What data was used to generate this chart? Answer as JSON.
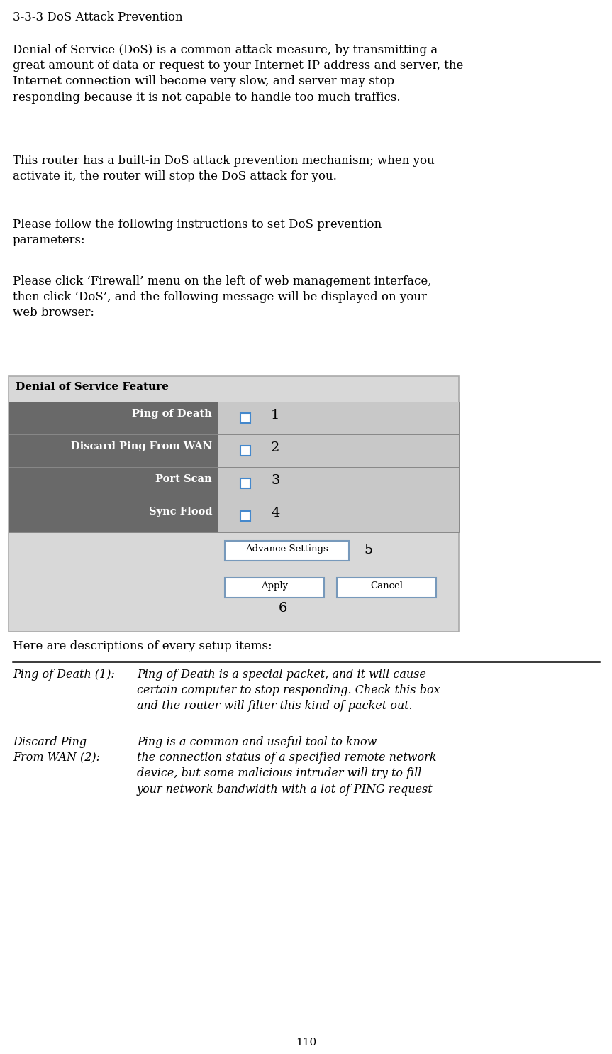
{
  "title": "3-3-3 DoS Attack Prevention",
  "para1": "Denial of Service (DoS) is a common attack measure, by transmitting a\ngreat amount of data or request to your Internet IP address and server, the\nInternet connection will become very slow, and server may stop\nresponding because it is not capable to handle too much traffics.",
  "para2": "This router has a built-in DoS attack prevention mechanism; when you\nactivate it, the router will stop the DoS attack for you.",
  "para3": "Please follow the following instructions to set DoS prevention\nparameters:",
  "para4": "Please click ‘Firewall’ menu on the left of web management interface,\nthen click ‘DoS’, and the following message will be displayed on your\nweb browser:",
  "table_header": "Denial of Service Feature",
  "table_rows": [
    "Ping of Death",
    "Discard Ping From WAN",
    "Port Scan",
    "Sync Flood"
  ],
  "row_numbers": [
    "1",
    "2",
    "3",
    "4"
  ],
  "btn_advance": "Advance Settings",
  "btn_apply": "Apply",
  "btn_cancel": "Cancel",
  "label5": "5",
  "label6": "6",
  "desc_header": "Here are descriptions of every setup items:",
  "desc_items": [
    {
      "term": "Ping of Death (1):",
      "desc": "Ping of Death is a special packet, and it will cause\ncertain computer to stop responding. Check this box\nand the router will filter this kind of packet out."
    },
    {
      "term": "Discard Ping\nFrom WAN (2):",
      "desc": "Ping is a common and useful tool to know\nthe connection status of a specified remote network\ndevice, but some malicious intruder will try to fill\nyour network bandwidth with a lot of PING request"
    }
  ],
  "page_number": "110",
  "bg_color": "#ffffff",
  "row_dark_color": "#696969",
  "row_light_color": "#c8c8c8",
  "table_outer_color": "#d8d8d8",
  "border_color": "#aaaaaa",
  "checkbox_border": "#4488cc",
  "btn_border": "#7799bb"
}
